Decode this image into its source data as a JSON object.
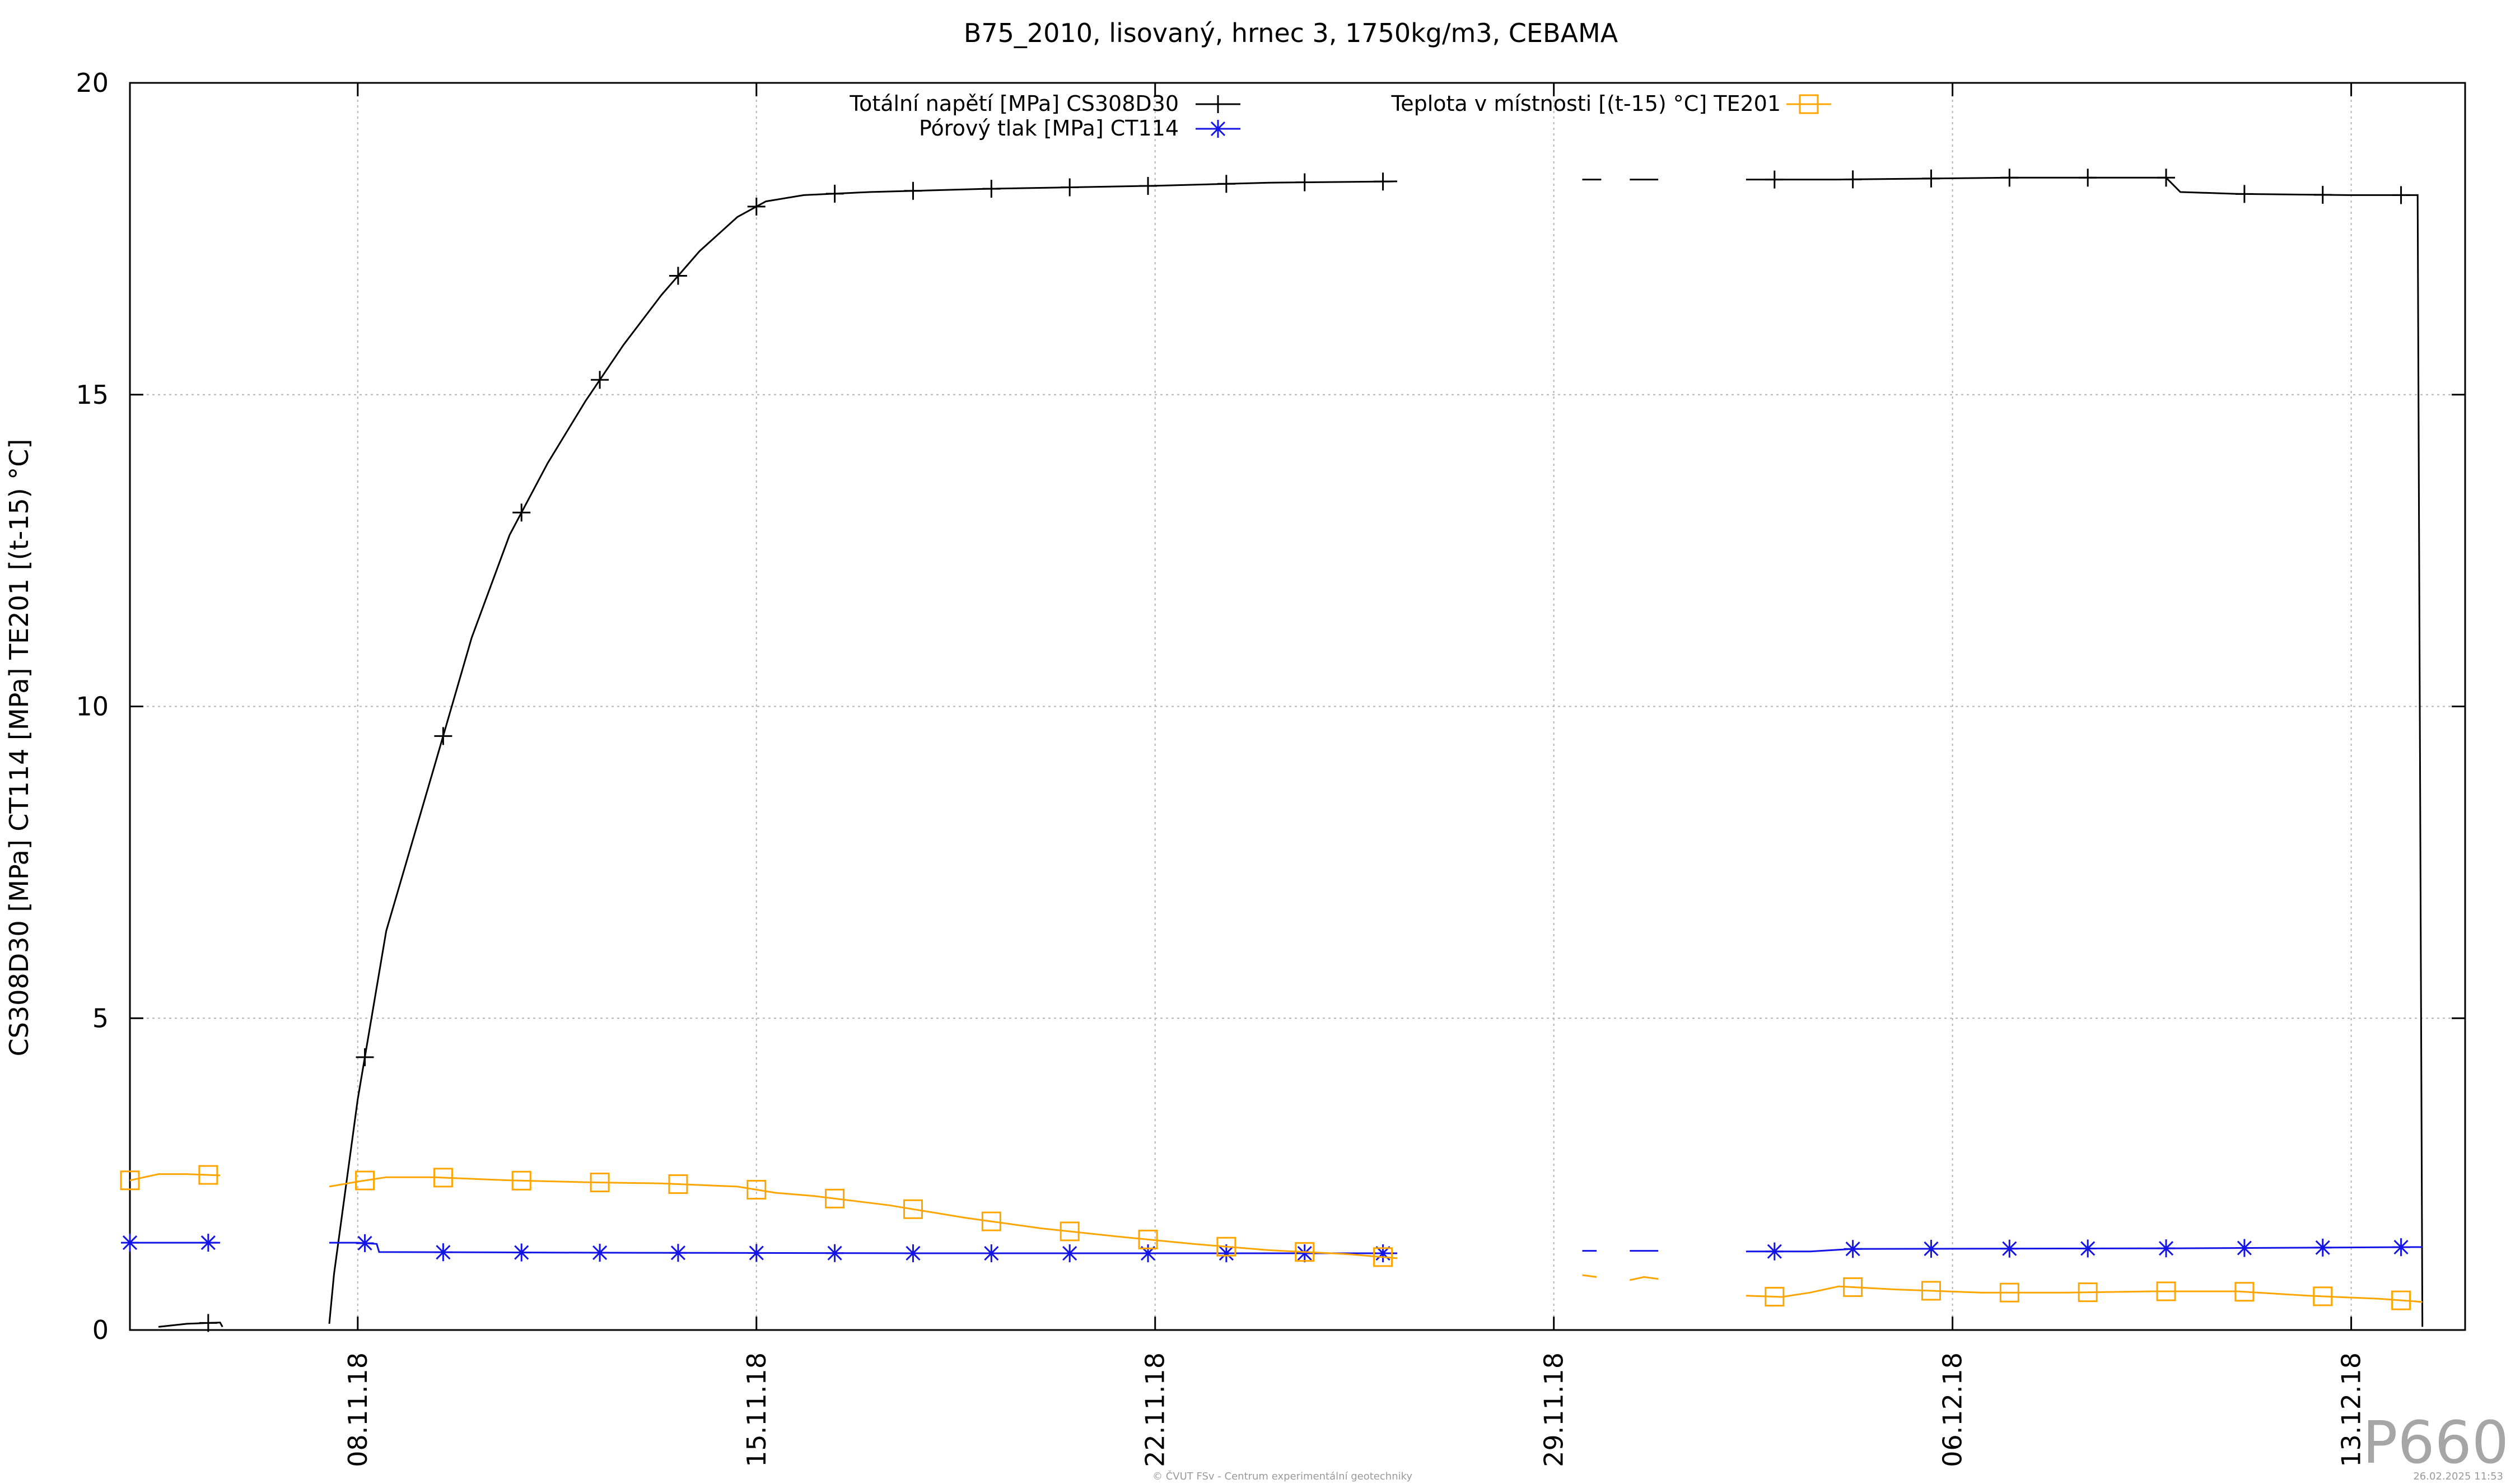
{
  "chart_data": {
    "type": "line",
    "title": "B75_2010, lisovaný, hrnec 3, 1750kg/m3, CEBAMA",
    "ylabel": "CS308D30 [MPa] CT114 [MPa] TE201 [(t-15) °C]",
    "xlabel": "",
    "xlim": [
      "2018-11-04",
      "2018-12-15"
    ],
    "ylim": [
      0,
      20
    ],
    "yticks": [
      0,
      5,
      10,
      15,
      20
    ],
    "xticks": [
      "08.11.18",
      "15.11.18",
      "22.11.18",
      "29.11.18",
      "06.12.18",
      "13.12.18"
    ],
    "grid": true,
    "legend_position": "top",
    "series": [
      {
        "name": "Totální napětí [MPa] CS308D30",
        "color": "#000000",
        "marker": "plus",
        "segments": [
          [
            [
              "2018-11-04 12:00",
              0.05
            ],
            [
              "2018-11-05 00:00",
              0.1
            ],
            [
              "2018-11-05 14:00",
              0.12
            ],
            [
              "2018-11-05 15:00",
              0.05
            ]
          ],
          [
            [
              "2018-11-07 12:00",
              0.1
            ],
            [
              "2018-11-07 14:00",
              0.9
            ],
            [
              "2018-11-08 00:00",
              3.7
            ],
            [
              "2018-11-08 12:00",
              6.4
            ],
            [
              "2018-11-09 08:00",
              9.0
            ],
            [
              "2018-11-10 00:00",
              11.1
            ],
            [
              "2018-11-10 16:00",
              12.75
            ],
            [
              "2018-11-11 08:00",
              13.9
            ],
            [
              "2018-11-12 00:00",
              14.9
            ],
            [
              "2018-11-12 16:00",
              15.8
            ],
            [
              "2018-11-13 08:00",
              16.6
            ],
            [
              "2018-11-14 00:00",
              17.3
            ],
            [
              "2018-11-14 16:00",
              17.85
            ],
            [
              "2018-11-15 04:00",
              18.1
            ],
            [
              "2018-11-15 20:00",
              18.2
            ],
            [
              "2018-11-17 00:00",
              18.25
            ],
            [
              "2018-11-19 00:00",
              18.3
            ],
            [
              "2018-11-22 00:00",
              18.35
            ],
            [
              "2018-11-24 00:00",
              18.4
            ],
            [
              "2018-11-26 06:00",
              18.42
            ]
          ],
          [
            [
              "2018-11-29 12:00",
              18.45
            ],
            [
              "2018-11-29 20:00",
              18.45
            ]
          ],
          [
            [
              "2018-11-30 08:00",
              18.45
            ],
            [
              "2018-11-30 20:00",
              18.45
            ]
          ],
          [
            [
              "2018-12-02 09:00",
              18.45
            ],
            [
              "2018-12-04 00:00",
              18.45
            ],
            [
              "2018-12-07 00:00",
              18.48
            ],
            [
              "2018-12-09 18:00",
              18.48
            ],
            [
              "2018-12-10 00:00",
              18.25
            ],
            [
              "2018-12-11 00:00",
              18.22
            ],
            [
              "2018-12-13 00:00",
              18.2
            ],
            [
              "2018-12-14 04:00",
              18.2
            ],
            [
              "2018-12-14 06:00",
              0.05
            ]
          ]
        ]
      },
      {
        "name": "Pórový tlak [MPa] CT114",
        "color": "#1414e6",
        "marker": "star",
        "segments": [
          [
            [
              "2018-11-04 00:00",
              1.4
            ],
            [
              "2018-11-05 00:00",
              1.4
            ],
            [
              "2018-11-05 14:00",
              1.4
            ]
          ],
          [
            [
              "2018-11-07 12:00",
              1.4
            ],
            [
              "2018-11-08 00:00",
              1.4
            ],
            [
              "2018-11-08 08:00",
              1.38
            ],
            [
              "2018-11-08 09:00",
              1.25
            ],
            [
              "2018-11-12 00:00",
              1.24
            ],
            [
              "2018-11-18 00:00",
              1.23
            ],
            [
              "2018-11-26 06:00",
              1.23
            ]
          ],
          [
            [
              "2018-11-29 12:00",
              1.27
            ],
            [
              "2018-11-29 18:00",
              1.27
            ]
          ],
          [
            [
              "2018-11-30 08:00",
              1.27
            ],
            [
              "2018-11-30 20:00",
              1.27
            ]
          ],
          [
            [
              "2018-12-02 09:00",
              1.26
            ],
            [
              "2018-12-03 12:00",
              1.26
            ],
            [
              "2018-12-04 06:00",
              1.3
            ],
            [
              "2018-12-10 00:00",
              1.31
            ],
            [
              "2018-12-14 06:00",
              1.33
            ]
          ]
        ]
      },
      {
        "name": "Teplota v místnosti [(t-15) °C] TE201",
        "color": "#ffa500",
        "marker": "square",
        "segments": [
          [
            [
              "2018-11-04 00:00",
              2.4
            ],
            [
              "2018-11-04 12:00",
              2.5
            ],
            [
              "2018-11-05 00:00",
              2.5
            ],
            [
              "2018-11-05 14:00",
              2.48
            ]
          ],
          [
            [
              "2018-11-07 12:00",
              2.3
            ],
            [
              "2018-11-08 00:00",
              2.38
            ],
            [
              "2018-11-08 12:00",
              2.45
            ],
            [
              "2018-11-09 08:00",
              2.45
            ],
            [
              "2018-11-10 16:00",
              2.4
            ],
            [
              "2018-11-12 00:00",
              2.37
            ],
            [
              "2018-11-13 08:00",
              2.35
            ],
            [
              "2018-11-14 16:00",
              2.3
            ],
            [
              "2018-11-15 08:00",
              2.2
            ],
            [
              "2018-11-16 00:00",
              2.15
            ],
            [
              "2018-11-17 08:00",
              2.0
            ],
            [
              "2018-11-18 16:00",
              1.8
            ],
            [
              "2018-11-20 00:00",
              1.63
            ],
            [
              "2018-11-21 08:00",
              1.5
            ],
            [
              "2018-11-22 16:00",
              1.38
            ],
            [
              "2018-11-24 00:00",
              1.28
            ],
            [
              "2018-11-25 08:00",
              1.22
            ],
            [
              "2018-11-26 06:00",
              1.15
            ]
          ],
          [
            [
              "2018-11-29 12:00",
              0.88
            ],
            [
              "2018-11-29 18:00",
              0.85
            ]
          ],
          [
            [
              "2018-11-30 08:00",
              0.8
            ],
            [
              "2018-11-30 14:00",
              0.85
            ],
            [
              "2018-11-30 20:00",
              0.82
            ]
          ],
          [
            [
              "2018-12-02 09:00",
              0.55
            ],
            [
              "2018-12-03 00:00",
              0.53
            ],
            [
              "2018-12-03 12:00",
              0.6
            ],
            [
              "2018-12-04 00:00",
              0.7
            ],
            [
              "2018-12-05 00:00",
              0.65
            ],
            [
              "2018-12-06 12:00",
              0.6
            ],
            [
              "2018-12-08 00:00",
              0.6
            ],
            [
              "2018-12-09 12:00",
              0.62
            ],
            [
              "2018-12-11 00:00",
              0.62
            ],
            [
              "2018-12-12 06:00",
              0.55
            ],
            [
              "2018-12-13 12:00",
              0.5
            ],
            [
              "2018-12-14 06:00",
              0.45
            ]
          ]
        ]
      }
    ]
  },
  "watermark": "P660",
  "footer_center": "© ČVUT FSv - Centrum experimentální geotechniky",
  "footer_right": "26.02.2025 11:53"
}
